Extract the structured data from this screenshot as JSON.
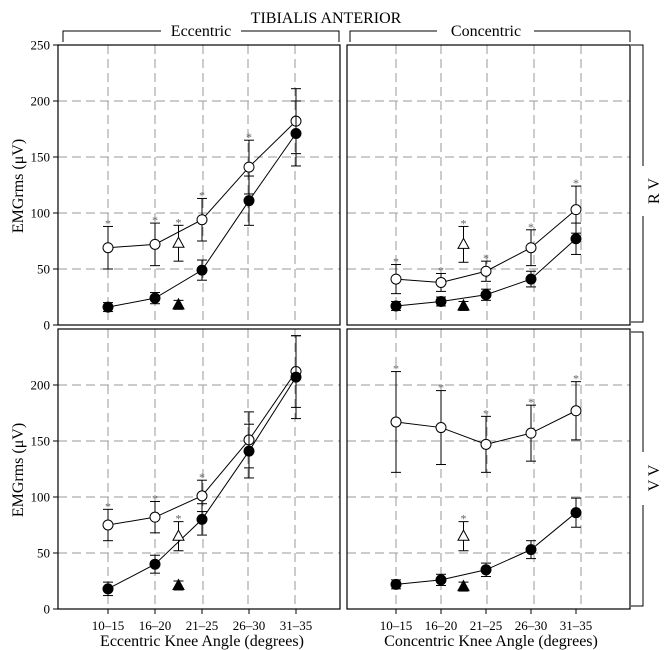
{
  "figure": {
    "title": "TIBIALIS ANTERIOR",
    "col_labels": [
      "Eccentric",
      "Concentric"
    ],
    "row_labels": [
      "R V",
      "V V"
    ],
    "ylabel": "EMGrms (μV)",
    "xlabels": [
      "Eccentric Knee Angle (degrees)",
      "Concentric Knee Angle (degrees)"
    ]
  },
  "chart_data": [
    {
      "type": "line",
      "panel": "eccentric-rv",
      "categories": [
        "10–15",
        "16–20",
        "21–25",
        "26–30",
        "31–35"
      ],
      "ylim": [
        0,
        250
      ],
      "yticks": [
        0,
        50,
        100,
        150,
        200,
        250
      ],
      "grid": true,
      "series": [
        {
          "marker": "open-circle",
          "connected": true,
          "x": [
            0,
            1,
            2,
            3,
            4
          ],
          "values": [
            69,
            72,
            94,
            141,
            182
          ],
          "err": [
            19,
            19,
            19,
            24,
            29
          ],
          "sig": [
            true,
            true,
            true,
            true,
            false
          ]
        },
        {
          "marker": "filled-circle",
          "connected": true,
          "x": [
            0,
            1,
            2,
            3,
            4
          ],
          "values": [
            16,
            24,
            49,
            111,
            171
          ],
          "err": [
            4,
            5,
            9,
            22,
            29
          ],
          "sig": [
            false,
            false,
            false,
            false,
            false
          ]
        },
        {
          "marker": "open-triangle",
          "connected": false,
          "x": [
            1.5
          ],
          "values": [
            73
          ],
          "err": [
            16
          ],
          "sig": [
            true
          ]
        },
        {
          "marker": "filled-triangle",
          "connected": false,
          "x": [
            1.5
          ],
          "values": [
            18
          ],
          "err": [
            4
          ],
          "sig": [
            false
          ]
        }
      ]
    },
    {
      "type": "line",
      "panel": "concentric-rv",
      "categories": [
        "10–15",
        "16–20",
        "21–25",
        "26–30",
        "31–35"
      ],
      "ylim": [
        0,
        250
      ],
      "yticks": [
        0,
        50,
        100,
        150,
        200,
        250
      ],
      "grid": true,
      "series": [
        {
          "marker": "open-circle",
          "connected": true,
          "x": [
            0,
            1,
            2,
            3,
            4
          ],
          "values": [
            41,
            38,
            48,
            69,
            103
          ],
          "err": [
            13,
            8,
            9,
            16,
            21
          ],
          "sig": [
            true,
            true,
            true,
            true,
            true
          ]
        },
        {
          "marker": "filled-circle",
          "connected": true,
          "x": [
            0,
            1,
            2,
            3,
            4
          ],
          "values": [
            17,
            21,
            27,
            41,
            77
          ],
          "err": [
            4,
            4,
            5,
            7,
            14
          ],
          "sig": [
            false,
            false,
            false,
            false,
            false
          ]
        },
        {
          "marker": "open-triangle",
          "connected": false,
          "x": [
            1.5
          ],
          "values": [
            72
          ],
          "err": [
            16
          ],
          "sig": [
            true
          ]
        },
        {
          "marker": "filled-triangle",
          "connected": false,
          "x": [
            1.5
          ],
          "values": [
            17
          ],
          "err": [
            4
          ],
          "sig": [
            false
          ]
        }
      ]
    },
    {
      "type": "line",
      "panel": "eccentric-vv",
      "categories": [
        "10–15",
        "16–20",
        "21–25",
        "26–30",
        "31–35"
      ],
      "ylim": [
        0,
        250
      ],
      "yticks": [
        0,
        50,
        100,
        150,
        200
      ],
      "grid": true,
      "series": [
        {
          "marker": "open-circle",
          "connected": true,
          "x": [
            0,
            1,
            2,
            3,
            4
          ],
          "values": [
            75,
            82,
            101,
            151,
            212
          ],
          "err": [
            14,
            14,
            14,
            25,
            32
          ],
          "sig": [
            true,
            true,
            true,
            false,
            false
          ]
        },
        {
          "marker": "filled-circle",
          "connected": true,
          "x": [
            0,
            1,
            2,
            3,
            4
          ],
          "values": [
            18,
            40,
            80,
            141,
            207
          ],
          "err": [
            6,
            8,
            14,
            24,
            37
          ],
          "sig": [
            false,
            false,
            false,
            false,
            false
          ]
        },
        {
          "marker": "open-triangle",
          "connected": false,
          "x": [
            1.5
          ],
          "values": [
            65
          ],
          "err": [
            13
          ],
          "sig": [
            true
          ]
        },
        {
          "marker": "filled-triangle",
          "connected": false,
          "x": [
            1.5
          ],
          "values": [
            21
          ],
          "err": [
            4
          ],
          "sig": [
            false
          ]
        }
      ]
    },
    {
      "type": "line",
      "panel": "concentric-vv",
      "categories": [
        "10–15",
        "16–20",
        "21–25",
        "26–30",
        "31–35"
      ],
      "ylim": [
        0,
        250
      ],
      "yticks": [
        0,
        50,
        100,
        150,
        200
      ],
      "grid": true,
      "series": [
        {
          "marker": "open-circle",
          "connected": true,
          "x": [
            0,
            1,
            2,
            3,
            4
          ],
          "values": [
            167,
            162,
            147,
            157,
            177
          ],
          "err": [
            45,
            33,
            25,
            25,
            26
          ],
          "sig": [
            true,
            true,
            true,
            true,
            true
          ]
        },
        {
          "marker": "filled-circle",
          "connected": true,
          "x": [
            0,
            1,
            2,
            3,
            4
          ],
          "values": [
            22,
            26,
            35,
            53,
            86
          ],
          "err": [
            4,
            5,
            6,
            8,
            13
          ],
          "sig": [
            false,
            false,
            false,
            false,
            false
          ]
        },
        {
          "marker": "open-triangle",
          "connected": false,
          "x": [
            1.5
          ],
          "values": [
            65
          ],
          "err": [
            13
          ],
          "sig": [
            true
          ]
        },
        {
          "marker": "filled-triangle",
          "connected": false,
          "x": [
            1.5
          ],
          "values": [
            20
          ],
          "err": [
            4
          ],
          "sig": [
            false
          ]
        }
      ]
    }
  ]
}
